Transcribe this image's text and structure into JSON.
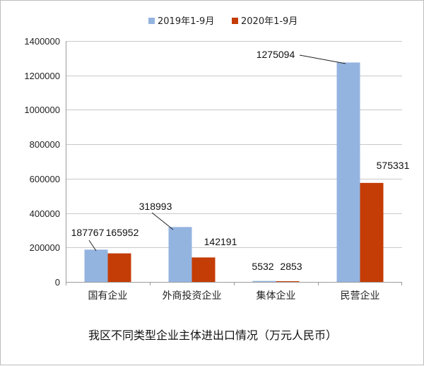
{
  "chart_data": {
    "type": "bar",
    "title": "我区不同类型企业主体进出口情况（万元人民币）",
    "categories": [
      "国有企业",
      "外商投资企业",
      "集体企业",
      "民营企业"
    ],
    "series": [
      {
        "name": "2019年1-9月",
        "color": "#94b4e0",
        "values": [
          187767,
          318993,
          5532,
          1275094
        ]
      },
      {
        "name": "2020年1-9月",
        "color": "#c43c06",
        "values": [
          165952,
          142191,
          2853,
          575331
        ]
      }
    ],
    "ylim": [
      0,
      1400000
    ],
    "yticks": [
      "0",
      "200000",
      "400000",
      "600000",
      "800000",
      "1000000",
      "1200000",
      "1400000"
    ],
    "grid": true,
    "legend_position": "top-center"
  }
}
